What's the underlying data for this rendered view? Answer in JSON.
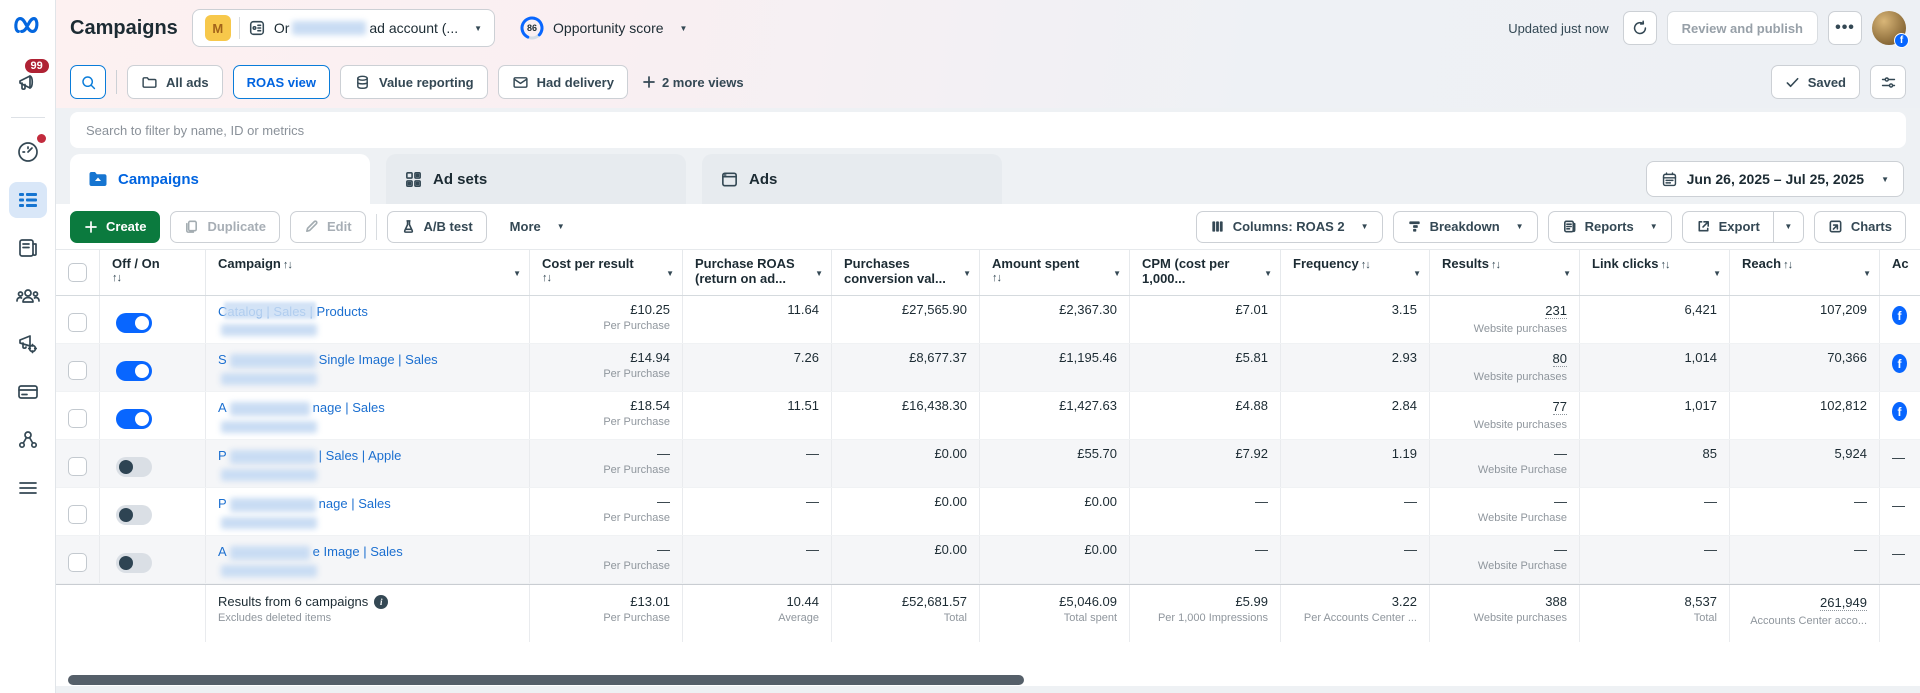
{
  "colors": {
    "accent_blue": "#0866ff",
    "link_blue": "#1b6fd0",
    "create_green": "#0b7a3e",
    "badge_red": "#af2234",
    "selected_tab_blue": "#0064e0"
  },
  "sidebar": {
    "notification_count": "99",
    "items": [
      "notifications",
      "account-overview",
      "campaigns",
      "pages",
      "audiences",
      "ads-reporting",
      "billing",
      "assets",
      "all-tools"
    ]
  },
  "topbar": {
    "title": "Campaigns",
    "workspace_badge": "M",
    "account_prefix": "Or",
    "account_suffix": "ad account (...",
    "opportunity_score": "86",
    "opportunity_label": "Opportunity score",
    "updated": "Updated just now",
    "review_publish": "Review and publish",
    "more": "•••"
  },
  "views": {
    "all_ads": "All ads",
    "roas_view": "ROAS view",
    "value_reporting": "Value reporting",
    "had_delivery": "Had delivery",
    "more_views": "2 more views",
    "saved": "Saved"
  },
  "search": {
    "placeholder": "Search to filter by name, ID or metrics"
  },
  "tabs": {
    "campaigns": "Campaigns",
    "ad_sets": "Ad sets",
    "ads": "Ads"
  },
  "date_range": "Jun 26, 2025 – Jul 25, 2025",
  "toolbar": {
    "create": "Create",
    "duplicate": "Duplicate",
    "edit": "Edit",
    "ab_test": "A/B test",
    "more": "More",
    "columns": "Columns: ROAS 2",
    "breakdown": "Breakdown",
    "reports": "Reports",
    "export": "Export",
    "charts": "Charts"
  },
  "table": {
    "headers": [
      {
        "label": "Off / On",
        "arrows": "stack",
        "caret": false
      },
      {
        "label": "Campaign",
        "arrows": "inline",
        "caret": true
      },
      {
        "label": "Cost per result",
        "arrows": "stack",
        "caret": true
      },
      {
        "label": "Purchase ROAS (return on ad...",
        "arrows": null,
        "caret": true
      },
      {
        "label": "Purchases conversion val...",
        "arrows": null,
        "caret": true
      },
      {
        "label": "Amount spent",
        "arrows": "stack",
        "caret": true
      },
      {
        "label": "CPM (cost per 1,000...",
        "arrows": null,
        "caret": true
      },
      {
        "label": "Frequency",
        "arrows": "inline",
        "caret": true
      },
      {
        "label": "Results",
        "arrows": "inline",
        "caret": true
      },
      {
        "label": "Link clicks",
        "arrows": "inline",
        "caret": true
      },
      {
        "label": "Reach",
        "arrows": "inline",
        "caret": true
      },
      {
        "label": "Ac",
        "arrows": null,
        "caret": false
      }
    ],
    "rows": [
      {
        "on": true,
        "name_prefix": "Catalog | Sales |",
        "name_suffix": " Products",
        "covered": true,
        "blur_w": 0,
        "cost": "£10.25",
        "cost_sub": "Per Purchase",
        "roas": "11.64",
        "conv": "£27,565.90",
        "spent": "£2,367.30",
        "cpm": "£7.01",
        "freq": "3.15",
        "results": "231",
        "results_dotted": true,
        "results_sub": "Website purchases",
        "clicks": "6,421",
        "reach": "107,209",
        "ac": "fb"
      },
      {
        "on": true,
        "name_prefix": "S",
        "name_suffix": "Single Image | Sales",
        "covered": false,
        "blur_w": 86,
        "cost": "£14.94",
        "cost_sub": "Per Purchase",
        "roas": "7.26",
        "conv": "£8,677.37",
        "spent": "£1,195.46",
        "cpm": "£5.81",
        "freq": "2.93",
        "results": "80",
        "results_dotted": true,
        "results_sub": "Website purchases",
        "clicks": "1,014",
        "reach": "70,366",
        "ac": "fb"
      },
      {
        "on": true,
        "name_prefix": "A",
        "name_suffix": "nage | Sales",
        "covered": false,
        "blur_w": 80,
        "cost": "£18.54",
        "cost_sub": "Per Purchase",
        "roas": "11.51",
        "conv": "£16,438.30",
        "spent": "£1,427.63",
        "cpm": "£4.88",
        "freq": "2.84",
        "results": "77",
        "results_dotted": true,
        "results_sub": "Website purchases",
        "clicks": "1,017",
        "reach": "102,812",
        "ac": "fb"
      },
      {
        "on": false,
        "name_prefix": "P",
        "name_suffix": "| Sales | Apple",
        "covered": false,
        "blur_w": 86,
        "cost": "—",
        "cost_sub": "Per Purchase",
        "roas": "—",
        "conv": "£0.00",
        "spent": "£55.70",
        "cpm": "£7.92",
        "freq": "1.19",
        "results": "—",
        "results_dotted": false,
        "results_sub": "Website Purchase",
        "clicks": "85",
        "reach": "5,924",
        "ac": "—"
      },
      {
        "on": false,
        "name_prefix": "P",
        "name_suffix": "nage | Sales",
        "covered": false,
        "blur_w": 86,
        "cost": "—",
        "cost_sub": "Per Purchase",
        "roas": "—",
        "conv": "£0.00",
        "spent": "£0.00",
        "cpm": "—",
        "freq": "—",
        "results": "—",
        "results_dotted": false,
        "results_sub": "Website Purchase",
        "clicks": "—",
        "reach": "—",
        "ac": "—"
      },
      {
        "on": false,
        "name_prefix": "A",
        "name_suffix": "e Image | Sales",
        "covered": false,
        "blur_w": 80,
        "cost": "—",
        "cost_sub": "Per Purchase",
        "roas": "—",
        "conv": "£0.00",
        "spent": "£0.00",
        "cpm": "—",
        "freq": "—",
        "results": "—",
        "results_dotted": false,
        "results_sub": "Website Purchase",
        "clicks": "—",
        "reach": "—",
        "ac": "—"
      }
    ],
    "summary": {
      "title": "Results from 6 campaigns",
      "note": "Excludes deleted items",
      "cost": "£13.01",
      "cost_sub": "Per Purchase",
      "roas": "10.44",
      "roas_sub": "Average",
      "conv": "£52,681.57",
      "conv_sub": "Total",
      "spent": "£5,046.09",
      "spent_sub": "Total spent",
      "cpm": "£5.99",
      "cpm_sub": "Per 1,000 Impressions",
      "freq": "3.22",
      "freq_sub": "Per Accounts Center ...",
      "results": "388",
      "results_sub": "Website purchases",
      "clicks": "8,537",
      "clicks_sub": "Total",
      "reach": "261,949",
      "reach_sub": "Accounts Center acco..."
    }
  }
}
